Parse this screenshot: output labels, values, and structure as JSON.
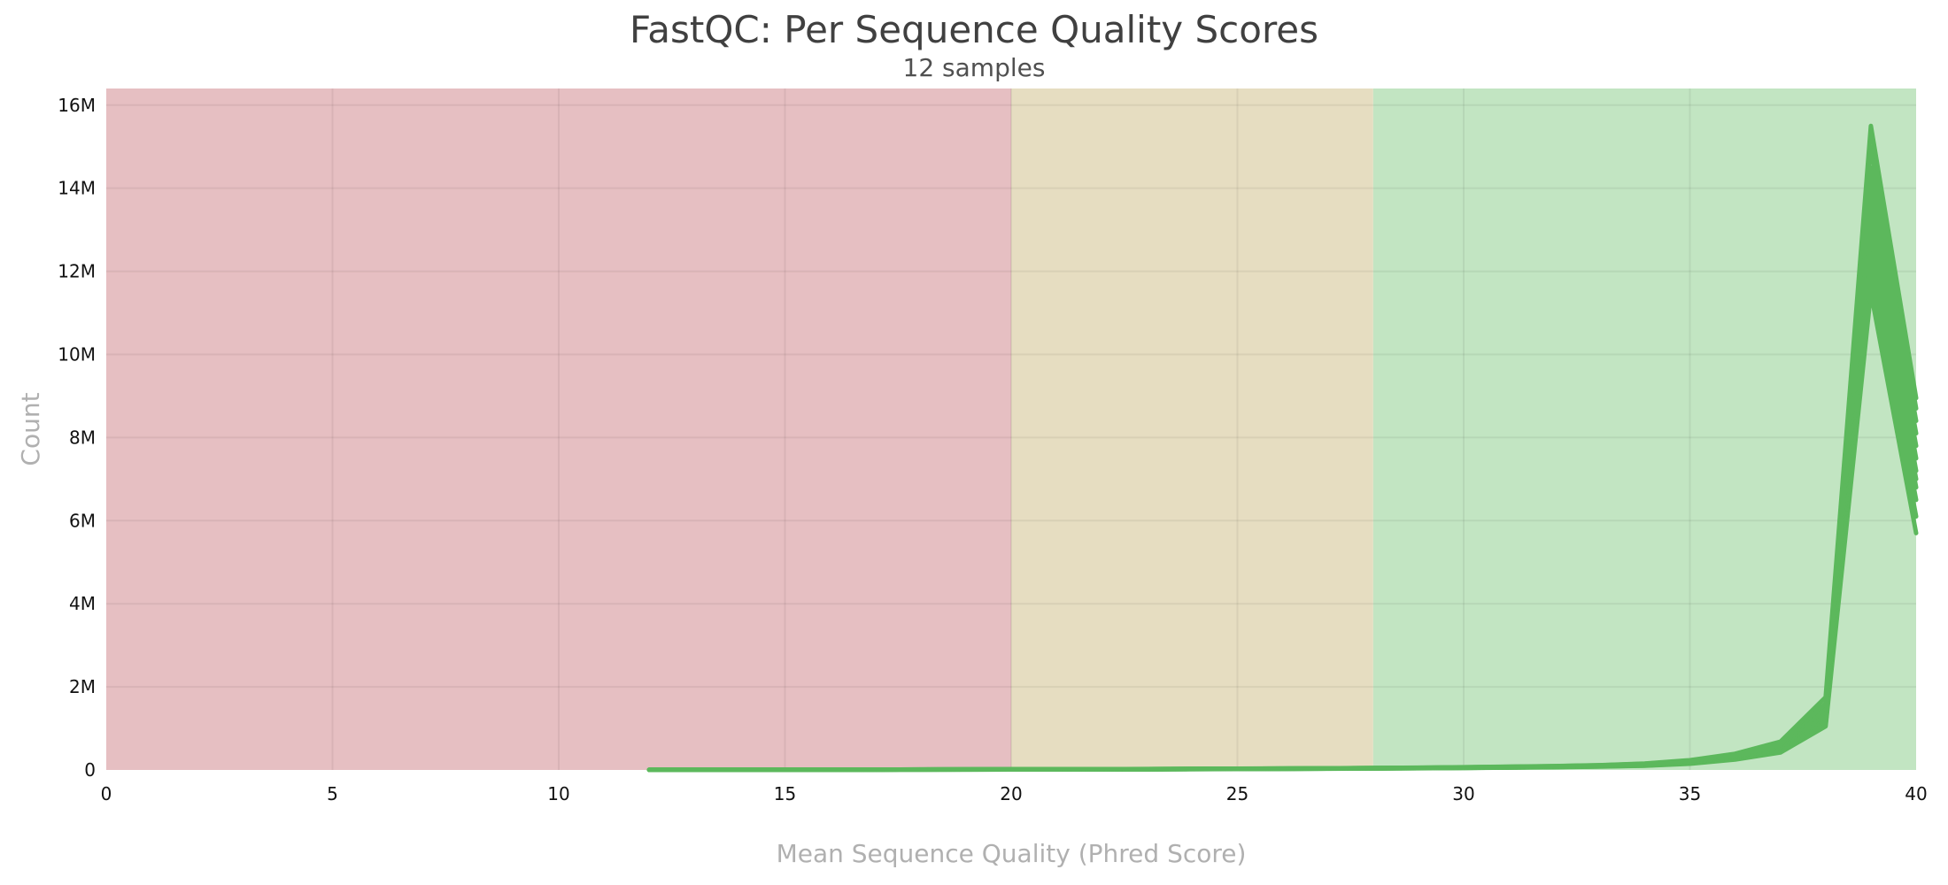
{
  "chart_data": {
    "type": "line",
    "title": "FastQC: Per Sequence Quality Scores",
    "subtitle": "12 samples",
    "xlabel": "Mean Sequence Quality (Phred Score)",
    "ylabel": "Count",
    "xlim": [
      0,
      40
    ],
    "ylim": [
      0,
      16400000
    ],
    "xticks": [
      0,
      5,
      10,
      15,
      20,
      25,
      30,
      35,
      40
    ],
    "xtick_labels": [
      "0",
      "5",
      "10",
      "15",
      "20",
      "25",
      "30",
      "35",
      "40"
    ],
    "yticks": [
      0,
      2000000,
      4000000,
      6000000,
      8000000,
      10000000,
      12000000,
      14000000,
      16000000
    ],
    "ytick_labels": [
      "0",
      "2M",
      "4M",
      "6M",
      "8M",
      "10M",
      "12M",
      "14M",
      "16M"
    ],
    "grid": true,
    "legend": "none",
    "bands": [
      {
        "from": 0,
        "to": 20,
        "color": "#e6bfc2"
      },
      {
        "from": 20,
        "to": 28,
        "color": "#e6ddc1"
      },
      {
        "from": 28,
        "to": 40,
        "color": "#c2e5c2"
      }
    ],
    "line_color": "#5cb85c",
    "x": [
      12,
      13,
      14,
      15,
      16,
      17,
      18,
      19,
      20,
      21,
      22,
      23,
      24,
      25,
      26,
      27,
      28,
      29,
      30,
      31,
      32,
      33,
      34,
      35,
      36,
      37,
      38,
      39,
      40
    ],
    "series": [
      {
        "values": [
          2000,
          3000,
          4000,
          5000,
          6000,
          7000,
          8000,
          9000,
          10000,
          12000,
          14000,
          16000,
          19000,
          22000,
          26000,
          30000,
          35000,
          41000,
          48000,
          56000,
          66000,
          80000,
          100000,
          150000,
          250000,
          420000,
          1050000,
          11500000,
          5700000
        ]
      },
      {
        "values": [
          2000,
          3000,
          4000,
          5000,
          6000,
          7000,
          8000,
          9000,
          11000,
          13000,
          15000,
          17000,
          20000,
          23000,
          27000,
          31000,
          36000,
          42000,
          50000,
          58000,
          70000,
          85000,
          105000,
          160000,
          270000,
          450000,
          1100000,
          11900000,
          6100000
        ]
      },
      {
        "values": [
          2000,
          3000,
          4000,
          5000,
          6000,
          7000,
          8000,
          10000,
          11000,
          13000,
          15000,
          18000,
          21000,
          24000,
          28000,
          32000,
          37000,
          43000,
          51000,
          60000,
          72000,
          88000,
          110000,
          165000,
          280000,
          470000,
          1150000,
          12300000,
          6500000
        ]
      },
      {
        "values": [
          3000,
          4000,
          5000,
          6000,
          7000,
          8000,
          9000,
          10000,
          12000,
          14000,
          16000,
          18000,
          21000,
          25000,
          29000,
          33000,
          38000,
          45000,
          53000,
          62000,
          74000,
          90000,
          115000,
          170000,
          290000,
          490000,
          1200000,
          12600000,
          6800000
        ]
      },
      {
        "values": [
          3000,
          4000,
          5000,
          6000,
          7000,
          8000,
          9000,
          11000,
          12000,
          14000,
          16000,
          19000,
          22000,
          25000,
          29000,
          34000,
          39000,
          46000,
          54000,
          64000,
          76000,
          93000,
          120000,
          180000,
          300000,
          510000,
          1250000,
          12900000,
          7000000
        ]
      },
      {
        "values": [
          3000,
          4000,
          5000,
          6000,
          7000,
          8000,
          10000,
          11000,
          13000,
          15000,
          17000,
          19000,
          22000,
          26000,
          30000,
          35000,
          40000,
          47000,
          56000,
          66000,
          78000,
          96000,
          125000,
          185000,
          310000,
          530000,
          1300000,
          13200000,
          7200000
        ]
      },
      {
        "values": [
          3000,
          4000,
          5000,
          6000,
          7000,
          9000,
          10000,
          12000,
          13000,
          15000,
          17000,
          20000,
          23000,
          27000,
          31000,
          36000,
          41000,
          48000,
          57000,
          68000,
          80000,
          98000,
          130000,
          190000,
          320000,
          550000,
          1350000,
          13500000,
          7500000
        ]
      },
      {
        "values": [
          3000,
          4000,
          5000,
          6000,
          8000,
          9000,
          11000,
          12000,
          14000,
          16000,
          18000,
          20000,
          24000,
          28000,
          32000,
          37000,
          42000,
          50000,
          59000,
          70000,
          83000,
          100000,
          135000,
          200000,
          330000,
          570000,
          1400000,
          13800000,
          7800000
        ]
      },
      {
        "values": [
          3000,
          4000,
          5000,
          7000,
          8000,
          9000,
          11000,
          12000,
          14000,
          16000,
          18000,
          21000,
          24000,
          28000,
          33000,
          38000,
          44000,
          51000,
          60000,
          72000,
          85000,
          105000,
          140000,
          205000,
          340000,
          590000,
          1450000,
          14100000,
          8100000
        ]
      },
      {
        "values": [
          4000,
          5000,
          6000,
          7000,
          8000,
          10000,
          11000,
          13000,
          15000,
          17000,
          19000,
          22000,
          25000,
          29000,
          34000,
          39000,
          45000,
          52000,
          62000,
          74000,
          88000,
          108000,
          145000,
          215000,
          355000,
          610000,
          1500000,
          14500000,
          8400000
        ]
      },
      {
        "values": [
          4000,
          5000,
          6000,
          7000,
          9000,
          10000,
          12000,
          13000,
          15000,
          17000,
          20000,
          22000,
          26000,
          30000,
          35000,
          40000,
          46000,
          54000,
          64000,
          76000,
          90000,
          112000,
          150000,
          225000,
          370000,
          640000,
          1600000,
          15000000,
          8700000
        ]
      },
      {
        "values": [
          4000,
          5000,
          6000,
          8000,
          9000,
          11000,
          12000,
          14000,
          16000,
          18000,
          20000,
          23000,
          27000,
          31000,
          36000,
          41000,
          48000,
          56000,
          66000,
          78000,
          93000,
          115000,
          155000,
          235000,
          390000,
          680000,
          1750000,
          15500000,
          8950000
        ]
      }
    ]
  }
}
